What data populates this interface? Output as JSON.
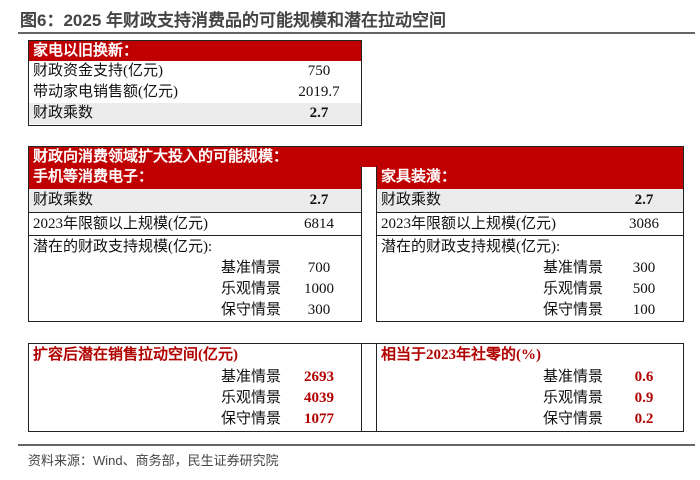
{
  "title": "图6：2025 年财政支持消费品的可能规模和潜在拉动空间",
  "appliance": {
    "header": "家电以旧换新：",
    "rows": [
      {
        "label": "财政资金支持(亿元)",
        "value": "750"
      },
      {
        "label": "带动家电销售额(亿元)",
        "value": "2019.7"
      },
      {
        "label": "财政乘数",
        "value": "2.7"
      }
    ]
  },
  "expansion": {
    "header": "财政向消费领域扩大投入的可能规模：",
    "left": {
      "header": "手机等消费电子：",
      "multiplier_label": "财政乘数",
      "multiplier": "2.7",
      "scale_label": "2023年限额以上规模(亿元)",
      "scale": "6814",
      "support_label": "潜在的财政支持规模(亿元):",
      "scenarios": [
        {
          "label": "基准情景",
          "value": "700"
        },
        {
          "label": "乐观情景",
          "value": "1000"
        },
        {
          "label": "保守情景",
          "value": "300"
        }
      ]
    },
    "right": {
      "header": "家具装潢：",
      "multiplier_label": "财政乘数",
      "multiplier": "2.7",
      "scale_label": "2023年限额以上规模(亿元)",
      "scale": "3086",
      "support_label": "潜在的财政支持规模(亿元):",
      "scenarios": [
        {
          "label": "基准情景",
          "value": "300"
        },
        {
          "label": "乐观情景",
          "value": "500"
        },
        {
          "label": "保守情景",
          "value": "100"
        }
      ]
    }
  },
  "pull": {
    "left": {
      "header": "扩容后潜在销售拉动空间(亿元)",
      "scenarios": [
        {
          "label": "基准情景",
          "value": "2693"
        },
        {
          "label": "乐观情景",
          "value": "4039"
        },
        {
          "label": "保守情景",
          "value": "1077"
        }
      ]
    },
    "right": {
      "header": "相当于2023年社零的(%)",
      "scenarios": [
        {
          "label": "基准情景",
          "value": "0.6"
        },
        {
          "label": "乐观情景",
          "value": "0.9"
        },
        {
          "label": "保守情景",
          "value": "0.2"
        }
      ]
    }
  },
  "source": "资料来源：Wind、商务部，民生证券研究院",
  "colors": {
    "header_red": "#c00000",
    "value_red": "#b00000",
    "gray_row": "#ececec"
  }
}
